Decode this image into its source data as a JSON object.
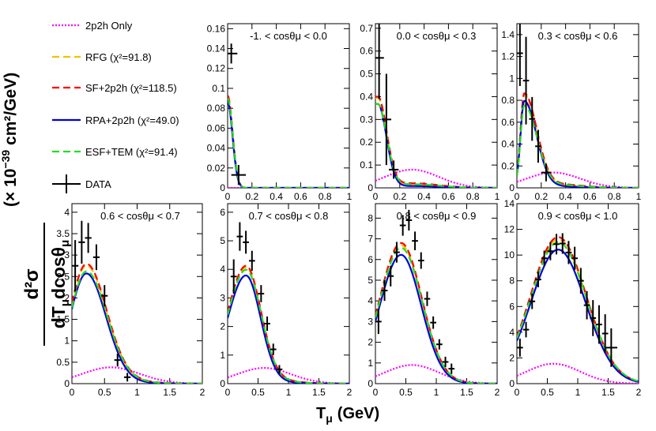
{
  "chart_data": {
    "type": "line",
    "x_title": "T",
    "x_title_sub": "μ",
    "x_title_unit": "(GeV)",
    "y_title_frac_num": "d²σ",
    "y_title_frac_den": "dT",
    "y_title_frac_den_sub1": "μ",
    "y_title_frac_den_mid": "dcosθ",
    "y_title_frac_den_sub2": "μ",
    "y_title_units": "(× 10",
    "y_title_exp": "−39",
    "y_title_units2": " cm²/GeV)",
    "legend": [
      {
        "label": "2p2h Only",
        "color": "#ff00ff",
        "style": "dotted"
      },
      {
        "label": "RFG (χ²=91.8)",
        "color": "#f2c200",
        "style": "dashed"
      },
      {
        "label": "SF+2p2h (χ²=118.5)",
        "color": "#ff0000",
        "style": "dashed"
      },
      {
        "label": "RPA+2p2h (χ²=49.0)",
        "color": "#0000dd",
        "style": "solid"
      },
      {
        "label": "ESF+TEM (χ²=91.4)",
        "color": "#22dd22",
        "style": "dashed"
      },
      {
        "label": "DATA",
        "color": "#000000",
        "style": "points"
      }
    ],
    "panels": [
      {
        "title": "-1. < cosθμ < 0.0",
        "xlim": [
          0,
          1
        ],
        "ylim": [
          0,
          0.165
        ],
        "xticks": [
          "0",
          "0.2",
          "0.4",
          "0.6",
          "0.8",
          "1"
        ],
        "xtick_vals": [
          0,
          0.2,
          0.4,
          0.6,
          0.8,
          1
        ],
        "yticks": [
          "0",
          "0.02",
          "0.04",
          "0.06",
          "0.08",
          "0.1",
          "0.12",
          "0.14",
          "0.16"
        ],
        "ytick_vals": [
          0,
          0.02,
          0.04,
          0.06,
          0.08,
          0.1,
          0.12,
          0.14,
          0.16
        ],
        "data": [
          [
            0.03,
            0.135,
            0.05,
            0.01
          ],
          [
            0.09,
            0.013,
            0.06,
            0.01
          ]
        ],
        "peak": 0.09,
        "peak_x": 0.0,
        "width": 0.04,
        "rise": 0.01,
        "cutoff": 0.2,
        "tem_scale": 1.0,
        "p2h": 0.0
      },
      {
        "title": "0.0 < cosθμ < 0.3",
        "xlim": [
          0,
          1
        ],
        "ylim": [
          0,
          0.72
        ],
        "xticks": [
          "0",
          "0.2",
          "0.4",
          "0.6",
          "0.8",
          "1"
        ],
        "xtick_vals": [
          0,
          0.2,
          0.4,
          0.6,
          0.8,
          1
        ],
        "yticks": [
          "0",
          "0.1",
          "0.2",
          "0.3",
          "0.4",
          "0.5",
          "0.6",
          "0.7"
        ],
        "ytick_vals": [
          0,
          0.1,
          0.2,
          0.3,
          0.4,
          0.5,
          0.6,
          0.7
        ],
        "data": [
          [
            0.03,
            0.57,
            0.04,
            0.18
          ],
          [
            0.09,
            0.3,
            0.04,
            0.2
          ],
          [
            0.15,
            0.08,
            0.04,
            0.04
          ]
        ],
        "peak": 0.38,
        "peak_x": 0.02,
        "width": 0.07,
        "rise": 0.02,
        "cutoff": 0.3,
        "tem_scale": 0.95,
        "p2h": 0.08
      },
      {
        "title": "0.3 < cosθμ < 0.6",
        "xlim": [
          0,
          1
        ],
        "ylim": [
          0,
          1.5
        ],
        "xticks": [
          "0",
          "0.2",
          "0.4",
          "0.6",
          "0.8",
          "1"
        ],
        "xtick_vals": [
          0,
          0.2,
          0.4,
          0.6,
          0.8,
          1
        ],
        "yticks": [
          "0",
          "0.2",
          "0.4",
          "0.6",
          "0.8",
          "1",
          "1.2",
          "1.4"
        ],
        "ytick_vals": [
          0,
          0.2,
          0.4,
          0.6,
          0.8,
          1,
          1.2,
          1.4
        ],
        "data": [
          [
            0.025,
            1.23,
            0.025,
            0.3
          ],
          [
            0.075,
            0.98,
            0.025,
            0.4
          ],
          [
            0.125,
            0.63,
            0.025,
            0.2
          ],
          [
            0.175,
            0.38,
            0.025,
            0.15
          ],
          [
            0.24,
            0.14,
            0.04,
            0.08
          ]
        ],
        "peak": 0.82,
        "peak_x": 0.06,
        "width": 0.1,
        "rise": 0.03,
        "cutoff": 0.4,
        "tem_scale": 0.9,
        "p2h": 0.14
      },
      {
        "title": "0.6 < cosθμ < 0.7",
        "xlim": [
          0,
          2
        ],
        "ylim": [
          0,
          4.2
        ],
        "xticks": [
          "0",
          "0.5",
          "1",
          "1.5",
          "2"
        ],
        "xtick_vals": [
          0,
          0.5,
          1,
          1.5,
          2
        ],
        "yticks": [
          "0",
          "0.5",
          "1",
          "1.5",
          "2",
          "2.5",
          "3",
          "3.5",
          "4"
        ],
        "ytick_vals": [
          0,
          0.5,
          1,
          1.5,
          2,
          2.5,
          3,
          3.5,
          4
        ],
        "data": [
          [
            0.05,
            2.75,
            0.05,
            0.6
          ],
          [
            0.15,
            3.3,
            0.05,
            0.5
          ],
          [
            0.25,
            3.4,
            0.05,
            0.35
          ],
          [
            0.375,
            2.95,
            0.05,
            0.3
          ],
          [
            0.5,
            2.05,
            0.05,
            0.25
          ],
          [
            0.7,
            0.55,
            0.05,
            0.15
          ],
          [
            0.85,
            0.15,
            0.05,
            0.1
          ]
        ],
        "peak": 2.65,
        "peak_x": 0.22,
        "width": 0.3,
        "rise": 0.25,
        "cutoff": 1.2,
        "tem_scale": 0.97,
        "p2h": 0.38
      },
      {
        "title": "0.7 < cosθμ < 0.8",
        "xlim": [
          0,
          2
        ],
        "ylim": [
          0,
          6.3
        ],
        "xticks": [
          "0",
          "0.5",
          "1",
          "1.5",
          "2"
        ],
        "xtick_vals": [
          0,
          0.5,
          1,
          1.5,
          2
        ],
        "yticks": [
          "0",
          "1",
          "2",
          "3",
          "4",
          "5",
          "6"
        ],
        "ytick_vals": [
          0,
          1,
          2,
          3,
          4,
          5,
          6
        ],
        "data": [
          [
            0.1,
            3.75,
            0.05,
            0.6
          ],
          [
            0.2,
            5.15,
            0.05,
            0.5
          ],
          [
            0.3,
            4.95,
            0.05,
            0.4
          ],
          [
            0.4,
            4.3,
            0.05,
            0.35
          ],
          [
            0.55,
            3.15,
            0.05,
            0.3
          ],
          [
            0.65,
            2.1,
            0.05,
            0.25
          ],
          [
            0.75,
            1.2,
            0.05,
            0.2
          ],
          [
            0.85,
            0.5,
            0.05,
            0.15
          ]
        ],
        "peak": 3.9,
        "peak_x": 0.3,
        "width": 0.24,
        "rise": 0.3,
        "cutoff": 1.3,
        "tem_scale": 1.0,
        "p2h": 0.55
      },
      {
        "title": "0.8 < cosθμ < 0.9",
        "xlim": [
          0,
          2
        ],
        "ylim": [
          0,
          8.7
        ],
        "xticks": [
          "0",
          "0.5",
          "1",
          "1.5",
          "2"
        ],
        "xtick_vals": [
          0,
          0.5,
          1,
          1.5,
          2
        ],
        "yticks": [
          "0",
          "1",
          "2",
          "3",
          "4",
          "5",
          "6",
          "7",
          "8"
        ],
        "ytick_vals": [
          0,
          1,
          2,
          3,
          4,
          5,
          6,
          7,
          8
        ],
        "data": [
          [
            0.05,
            3.0,
            0.05,
            0.6
          ],
          [
            0.15,
            4.5,
            0.05,
            0.5
          ],
          [
            0.25,
            5.2,
            0.05,
            0.5
          ],
          [
            0.35,
            6.35,
            0.05,
            0.5
          ],
          [
            0.45,
            7.65,
            0.05,
            0.5
          ],
          [
            0.55,
            7.9,
            0.05,
            0.5
          ],
          [
            0.65,
            6.9,
            0.05,
            0.45
          ],
          [
            0.75,
            5.95,
            0.05,
            0.4
          ],
          [
            0.85,
            4.1,
            0.05,
            0.35
          ],
          [
            0.95,
            2.95,
            0.05,
            0.3
          ],
          [
            1.05,
            1.9,
            0.05,
            0.25
          ],
          [
            1.15,
            1.05,
            0.05,
            0.25
          ],
          [
            1.25,
            0.72,
            0.05,
            0.25
          ]
        ],
        "peak": 6.4,
        "peak_x": 0.42,
        "width": 0.33,
        "rise": 0.35,
        "cutoff": 1.8,
        "tem_scale": 1.0,
        "p2h": 0.9
      },
      {
        "title": "0.9 < cosθμ < 1.0",
        "xlim": [
          0,
          2
        ],
        "ylim": [
          0,
          14
        ],
        "xticks": [
          "0",
          "0.5",
          "1",
          "1.5",
          "2"
        ],
        "xtick_vals": [
          0,
          0.5,
          1,
          1.5,
          2
        ],
        "yticks": [
          "0",
          "2",
          "4",
          "6",
          "8",
          "10",
          "12",
          "14"
        ],
        "ytick_vals": [
          0,
          2,
          4,
          6,
          8,
          10,
          12,
          14
        ],
        "data": [
          [
            0.05,
            2.8,
            0.05,
            0.7
          ],
          [
            0.15,
            4.2,
            0.05,
            0.6
          ],
          [
            0.25,
            6.4,
            0.05,
            0.6
          ],
          [
            0.35,
            8.1,
            0.05,
            0.6
          ],
          [
            0.45,
            9.75,
            0.05,
            0.6
          ],
          [
            0.55,
            10.3,
            0.05,
            0.7
          ],
          [
            0.65,
            10.85,
            0.05,
            0.8
          ],
          [
            0.75,
            10.9,
            0.05,
            0.8
          ],
          [
            0.85,
            10.2,
            0.05,
            0.9
          ],
          [
            0.95,
            9.75,
            0.05,
            0.9
          ],
          [
            1.05,
            8.0,
            0.05,
            1.0
          ],
          [
            1.15,
            6.1,
            0.05,
            1.1
          ],
          [
            1.25,
            5.1,
            0.05,
            1.4
          ],
          [
            1.35,
            4.6,
            0.05,
            1.5
          ],
          [
            1.45,
            3.9,
            0.05,
            1.5
          ],
          [
            1.55,
            2.8,
            0.1,
            1.5
          ]
        ],
        "peak": 10.7,
        "peak_x": 0.68,
        "width": 0.45,
        "rise": 0.45,
        "cutoff": 3.0,
        "tem_scale": 1.0,
        "p2h": 1.55
      }
    ]
  }
}
